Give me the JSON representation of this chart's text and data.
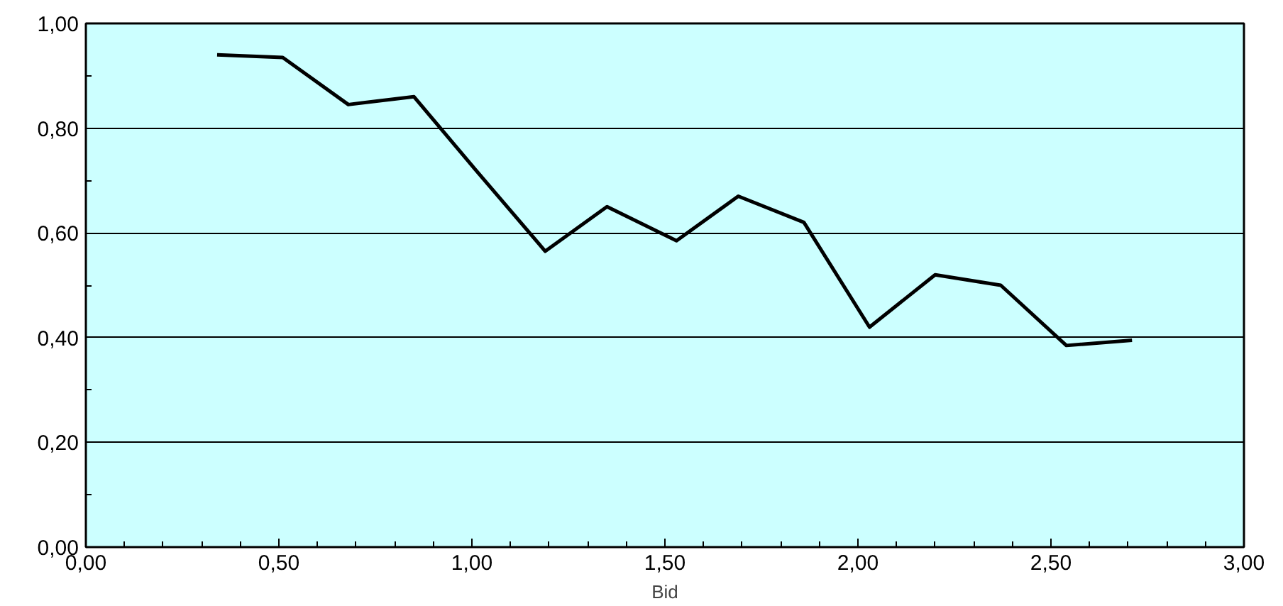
{
  "chart_data": {
    "type": "line",
    "xlabel": "Bid",
    "x": [
      0.34,
      0.51,
      0.68,
      0.85,
      1.01,
      1.19,
      1.35,
      1.53,
      1.69,
      1.86,
      2.03,
      2.2,
      2.37,
      2.54,
      2.71
    ],
    "series": [
      {
        "color": "#000000",
        "values": [
          0.94,
          0.935,
          0.845,
          0.86,
          0.72,
          0.565,
          0.65,
          0.585,
          0.67,
          0.62,
          0.42,
          0.52,
          0.5,
          0.385,
          0.395
        ]
      }
    ],
    "xlim": [
      0,
      3
    ],
    "ylim": [
      0,
      1
    ],
    "xticks": [
      {
        "value": 0,
        "label": "0,00"
      },
      {
        "value": 0.1,
        "label": null
      },
      {
        "value": 0.2,
        "label": null
      },
      {
        "value": 0.3,
        "label": null
      },
      {
        "value": 0.4,
        "label": null
      },
      {
        "value": 0.5,
        "label": "0,50"
      },
      {
        "value": 0.6,
        "label": null
      },
      {
        "value": 0.7,
        "label": null
      },
      {
        "value": 0.8,
        "label": null
      },
      {
        "value": 0.9,
        "label": null
      },
      {
        "value": 1,
        "label": "1,00"
      },
      {
        "value": 1.1,
        "label": null
      },
      {
        "value": 1.2,
        "label": null
      },
      {
        "value": 1.3,
        "label": null
      },
      {
        "value": 1.4,
        "label": null
      },
      {
        "value": 1.5,
        "label": "1,50"
      },
      {
        "value": 1.6,
        "label": null
      },
      {
        "value": 1.7,
        "label": null
      },
      {
        "value": 1.8,
        "label": null
      },
      {
        "value": 1.9,
        "label": null
      },
      {
        "value": 2,
        "label": "2,00"
      },
      {
        "value": 2.1,
        "label": null
      },
      {
        "value": 2.2,
        "label": null
      },
      {
        "value": 2.3,
        "label": null
      },
      {
        "value": 2.4,
        "label": null
      },
      {
        "value": 2.5,
        "label": "2,50"
      },
      {
        "value": 2.6,
        "label": null
      },
      {
        "value": 2.7,
        "label": null
      },
      {
        "value": 2.8,
        "label": null
      },
      {
        "value": 2.9,
        "label": null
      },
      {
        "value": 3,
        "label": "3,00"
      }
    ],
    "yticks": [
      {
        "value": 0,
        "label": "0,00"
      },
      {
        "value": 0.1,
        "label": null
      },
      {
        "value": 0.2,
        "label": "0,20"
      },
      {
        "value": 0.3,
        "label": null
      },
      {
        "value": 0.4,
        "label": "0,40"
      },
      {
        "value": 0.5,
        "label": null
      },
      {
        "value": 0.6,
        "label": "0,60"
      },
      {
        "value": 0.7,
        "label": null
      },
      {
        "value": 0.8,
        "label": "0,80"
      },
      {
        "value": 0.9,
        "label": null
      },
      {
        "value": 1,
        "label": "1,00"
      }
    ],
    "grid": "y",
    "marker": "none",
    "line_style": "solid"
  }
}
